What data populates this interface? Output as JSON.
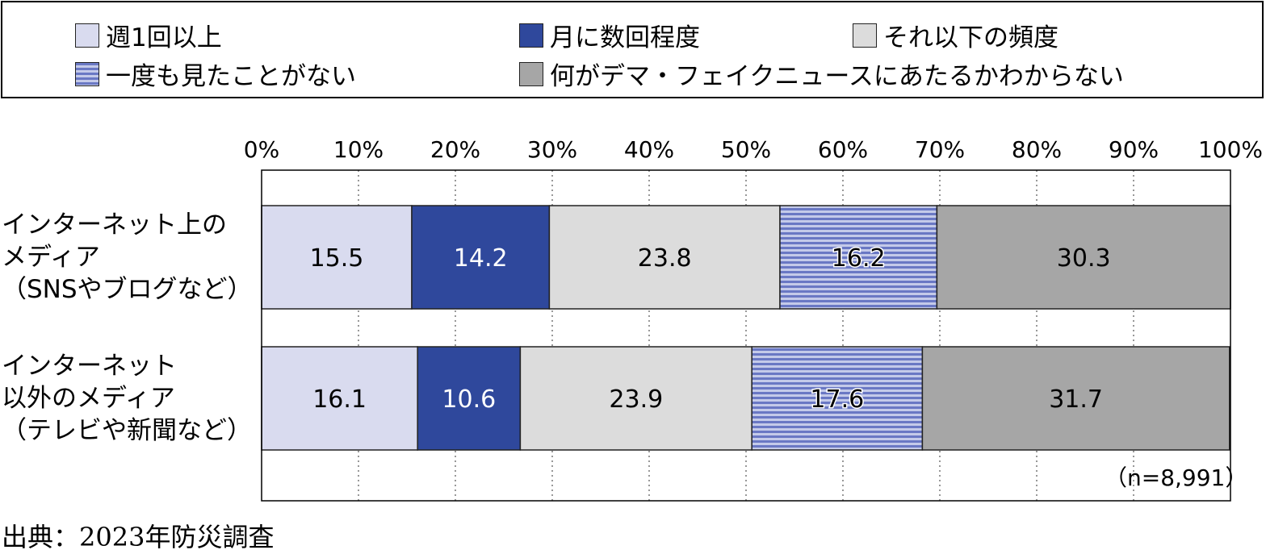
{
  "legend": {
    "items": [
      {
        "label": "週1回以上",
        "color": "#d9dbef"
      },
      {
        "label": "月に数回程度",
        "color": "#2f489c"
      },
      {
        "label": "それ以下の頻度",
        "color": "#dcdcdc"
      },
      {
        "label": "一度も見たことがない",
        "color": "#8893cf",
        "pattern": "horizontal-stripes"
      },
      {
        "label": "何がデマ・フェイクニュースにあたるかわからない",
        "color": "#a6a6a6"
      }
    ]
  },
  "chart_data": {
    "type": "bar",
    "orientation": "horizontal-stacked-100",
    "x_ticks": [
      "0%",
      "10%",
      "20%",
      "30%",
      "40%",
      "50%",
      "60%",
      "70%",
      "80%",
      "90%",
      "100%"
    ],
    "xlim": [
      0,
      100
    ],
    "grid": "vertical-dotted",
    "legend_position": "top",
    "categories": [
      "インターネット上の\nメディア\n（SNSやブログなど）",
      "インターネット\n以外のメディア\n（テレビや新聞など）"
    ],
    "series": [
      {
        "name": "週1回以上",
        "values": [
          15.5,
          16.1
        ]
      },
      {
        "name": "月に数回程度",
        "values": [
          14.2,
          10.6
        ]
      },
      {
        "name": "それ以下の頻度",
        "values": [
          23.8,
          23.9
        ]
      },
      {
        "name": "一度も見たことがない",
        "values": [
          16.2,
          17.6
        ]
      },
      {
        "name": "何がデマ・フェイクニュースにあたるかわからない",
        "values": [
          30.3,
          31.7
        ]
      }
    ],
    "data_labels": [
      [
        "15.5",
        "14.2",
        "23.8",
        "16.2",
        "30.3"
      ],
      [
        "16.1",
        "10.6",
        "23.9",
        "17.6",
        "31.7"
      ]
    ],
    "note": "（n=8,991）"
  },
  "source": "出典：2023年防災調査"
}
